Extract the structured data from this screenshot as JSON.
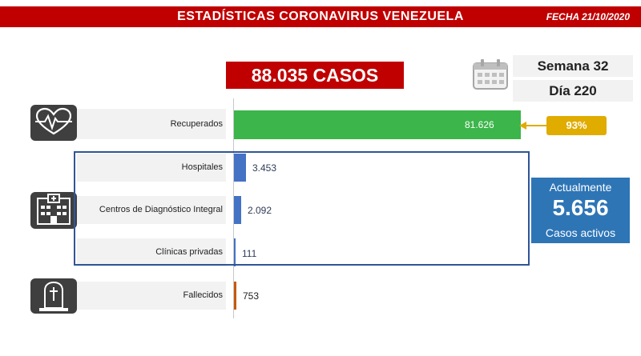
{
  "header": {
    "title": "ESTADÍSTICAS CORONAVIRUS VENEZUELA",
    "date": "FECHA 21/10/2020"
  },
  "total_cases": "88.035 CASOS",
  "week": "Semana 32",
  "day": "Día 220",
  "recovered_percent": "93%",
  "active": {
    "title": "Actualmente",
    "value": "5.656",
    "subtitle": "Casos activos"
  },
  "colors": {
    "brand_red": "#c00000",
    "recovered": "#3cb54a",
    "hospital": "#4472c4",
    "deaths": "#c55a11",
    "badge": "#e0ac00",
    "active_blue": "#2e75b6"
  },
  "icons": {
    "recovered": "heart-monitor-icon",
    "centers": "hospital-building-icon",
    "deaths": "tombstone-icon",
    "calendar": "calendar-icon"
  },
  "chart_data": {
    "type": "bar",
    "orientation": "horizontal",
    "categories": [
      "Recuperados",
      "Hospitales",
      "Centros de Diagnóstico Integral",
      "Clínicas privadas",
      "Fallecidos"
    ],
    "values": [
      81626,
      3453,
      2092,
      111,
      753
    ],
    "value_labels": [
      "81.626",
      "3.453",
      "2.092",
      "111",
      "753"
    ],
    "colors": [
      "#3cb54a",
      "#4472c4",
      "#4472c4",
      "#4472c4",
      "#c55a11"
    ],
    "grid": false
  }
}
